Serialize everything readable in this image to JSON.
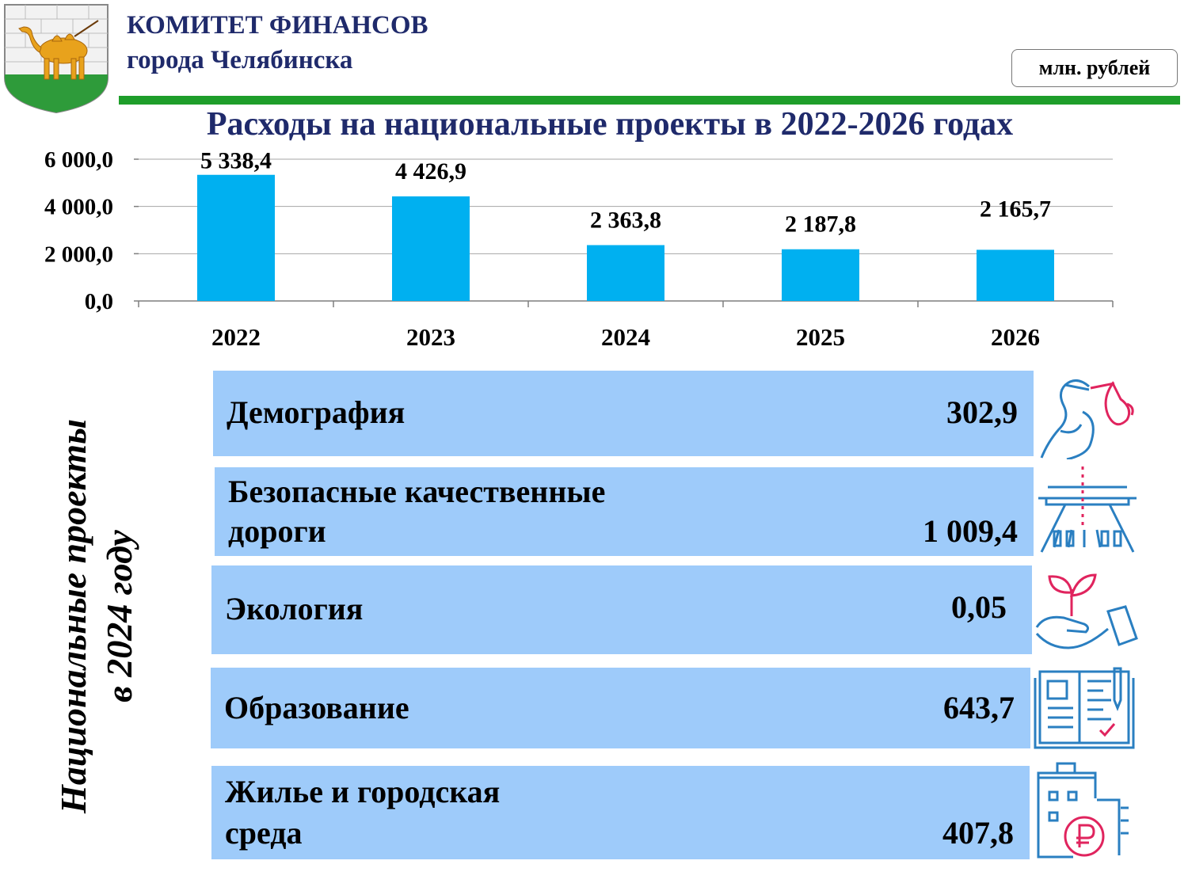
{
  "header": {
    "org_line1": "КОМИТЕТ ФИНАНСОВ",
    "org_line2": "города Челябинска",
    "unit": "млн. рублей"
  },
  "title": "Расходы на национальные проекты в 2022-2026 годах",
  "side_label": {
    "line1": "Национальные проекты",
    "line2": "в 2024 году"
  },
  "chart_data": {
    "type": "bar",
    "categories": [
      "2022",
      "2023",
      "2024",
      "2025",
      "2026"
    ],
    "values": [
      5338.4,
      4426.9,
      2363.8,
      2187.8,
      2165.7
    ],
    "value_labels": [
      "5 338,4",
      "4 426,9",
      "2 363,8",
      "2 187,8",
      "2 165,7"
    ],
    "y_ticks": [
      "0,0",
      "2 000,0",
      "4 000,0",
      "6 000,0"
    ],
    "ylim": [
      0,
      6000
    ],
    "grid": true,
    "bar_color": "#00b0f0"
  },
  "projects": [
    {
      "name_line1": "Демография",
      "name_line2": "",
      "value": "302,9",
      "icon": "stork-icon"
    },
    {
      "name_line1": "Безопасные качественные",
      "name_line2": "дороги",
      "value": "1 009,4",
      "icon": "road-icon"
    },
    {
      "name_line1": "Экология",
      "name_line2": "",
      "value": "0,05",
      "icon": "sprout-hand-icon"
    },
    {
      "name_line1": "Образование",
      "name_line2": "",
      "value": "643,7",
      "icon": "book-pen-icon"
    },
    {
      "name_line1": "Жилье и городская",
      "name_line2": "среда",
      "value": "407,8",
      "icon": "house-ruble-icon"
    }
  ],
  "colors": {
    "title": "#1f2a6b",
    "green_line": "#1e9e2a",
    "project_bg": "#9ecbfa",
    "icon_blue": "#2a7fc1",
    "icon_red": "#e0245e"
  }
}
